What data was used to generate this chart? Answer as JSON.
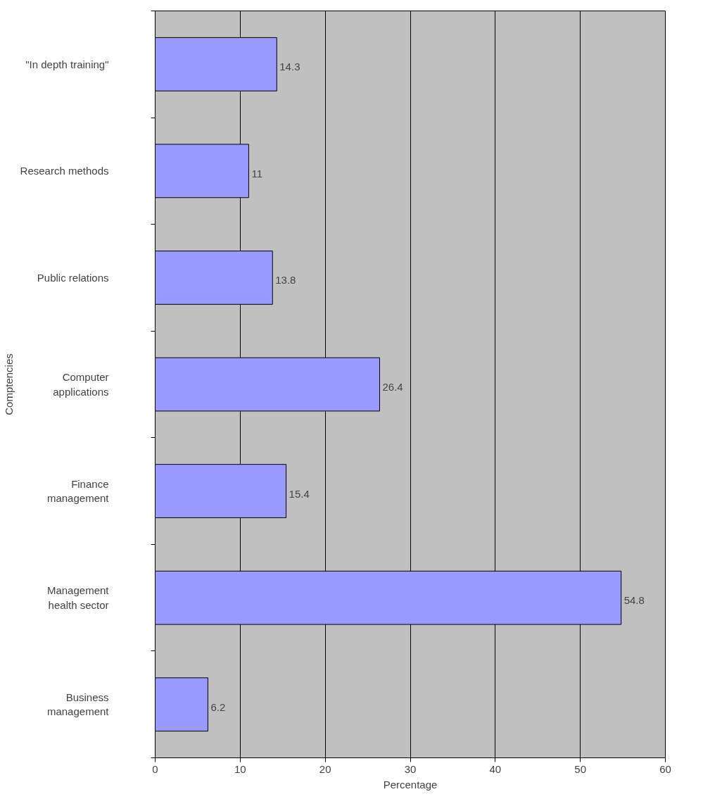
{
  "chart_data": {
    "type": "bar",
    "orientation": "horizontal",
    "xlabel": "Percentage",
    "ylabel": "Comptencies",
    "categories": [
      "\"In depth training\"",
      "Research methods",
      "Public relations",
      "Computer\napplications",
      "Finance\nmanagement",
      "Management\nhealth sector",
      "Business\nmanagement"
    ],
    "values": [
      14.3,
      11,
      13.8,
      26.4,
      15.4,
      54.8,
      6.2
    ],
    "color": "#9999ff",
    "xlim": [
      0,
      60
    ],
    "xticks": [
      0,
      10,
      20,
      30,
      40,
      50,
      60
    ],
    "grid": "x",
    "data_labels": true
  }
}
